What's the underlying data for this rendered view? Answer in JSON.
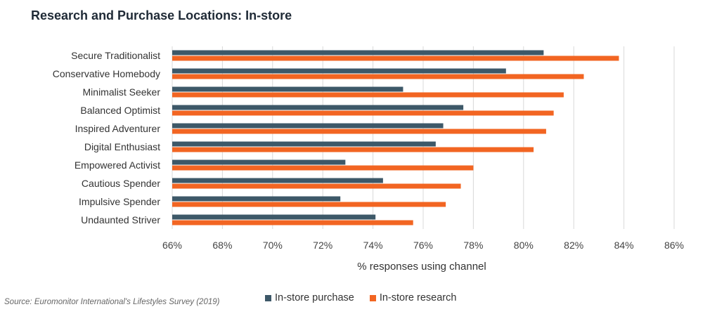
{
  "title": "Research and Purchase Locations: In-store",
  "source": "Source: Euromonitor International's Lifestyles Survey (2019)",
  "colors": {
    "purchase": "#3d5868",
    "research": "#f26522",
    "grid": "#d9d9d9"
  },
  "chart_data": {
    "type": "bar",
    "orientation": "horizontal",
    "title": "Research and Purchase Locations: In-store",
    "xlabel": "% responses using channel",
    "ylabel": "",
    "xlim": [
      66,
      86
    ],
    "x_ticks": [
      66,
      68,
      70,
      72,
      74,
      76,
      78,
      80,
      82,
      84,
      86
    ],
    "tick_suffix": "%",
    "grid": "vertical",
    "legend_position": "bottom",
    "categories": [
      "Secure Traditionalist",
      "Conservative Homebody",
      "Minimalist Seeker",
      "Balanced Optimist",
      "Inspired Adventurer",
      "Digital Enthusiast",
      "Empowered Activist",
      "Cautious Spender",
      "Impulsive Spender",
      "Undaunted Striver"
    ],
    "series": [
      {
        "name": "In-store purchase",
        "values": [
          80.8,
          79.3,
          75.2,
          77.6,
          76.8,
          76.5,
          72.9,
          74.4,
          72.7,
          74.1
        ]
      },
      {
        "name": "In-store research",
        "values": [
          83.8,
          82.4,
          81.6,
          81.2,
          80.9,
          80.4,
          78.0,
          77.5,
          76.9,
          75.6
        ]
      }
    ]
  }
}
